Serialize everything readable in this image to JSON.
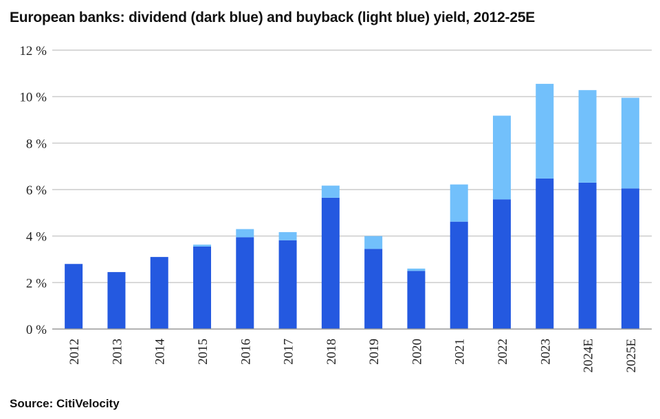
{
  "title": "European banks: dividend (dark blue) and buyback (light blue) yield, 2012-25E",
  "source": "Source: CitiVelocity",
  "colors": {
    "dividend": "#2459e0",
    "buyback": "#72c0fb",
    "grid": "#cccccc",
    "axis": "#999999"
  },
  "chart_data": {
    "type": "bar",
    "stacked": true,
    "categories": [
      "2012",
      "2013",
      "2014",
      "2015",
      "2016",
      "2017",
      "2018",
      "2019",
      "2020",
      "2021",
      "2022",
      "2023",
      "2024E",
      "2025E"
    ],
    "series": [
      {
        "values": [
          2.8,
          2.45,
          3.1,
          3.55,
          3.95,
          3.82,
          5.65,
          3.45,
          2.5,
          4.62,
          5.58,
          6.48,
          6.3,
          6.05
        ]
      },
      {
        "values": [
          0,
          0,
          0,
          0.08,
          0.35,
          0.35,
          0.52,
          0.55,
          0.1,
          1.6,
          3.6,
          4.07,
          3.98,
          3.9
        ]
      }
    ],
    "yticks": [
      "0 %",
      "2 %",
      "4 %",
      "6 %",
      "8 %",
      "10 %",
      "12 %"
    ],
    "ylim": [
      0,
      12
    ],
    "grid": true,
    "legend": "none"
  }
}
